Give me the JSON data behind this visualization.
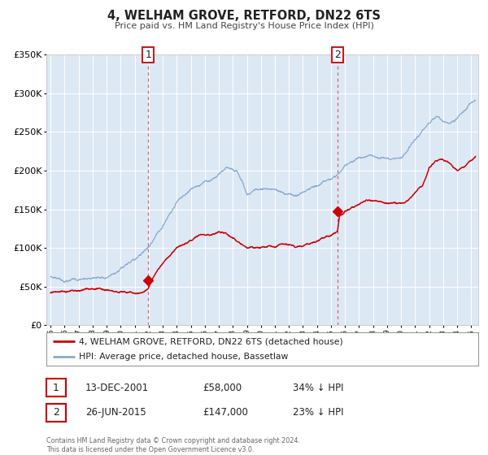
{
  "title": "4, WELHAM GROVE, RETFORD, DN22 6TS",
  "subtitle": "Price paid vs. HM Land Registry's House Price Index (HPI)",
  "legend_label_red": "4, WELHAM GROVE, RETFORD, DN22 6TS (detached house)",
  "legend_label_blue": "HPI: Average price, detached house, Bassetlaw",
  "marker1_date": "13-DEC-2001",
  "marker1_price": 58000,
  "marker1_pct": "34% ↓ HPI",
  "marker2_date": "26-JUN-2015",
  "marker2_price": 147000,
  "marker2_pct": "23% ↓ HPI",
  "footer": "Contains HM Land Registry data © Crown copyright and database right 2024.\nThis data is licensed under the Open Government Licence v3.0.",
  "red_color": "#cc0000",
  "blue_color": "#88aacc",
  "bg_color": "#dde8f5",
  "grid_color": "#ffffff",
  "marker_vline_color": "#cc4444",
  "ylim_min": 0,
  "ylim_max": 350000,
  "xlim_min": 1994.7,
  "xlim_max": 2025.5,
  "yticks": [
    0,
    50000,
    100000,
    150000,
    200000,
    250000,
    300000,
    350000
  ],
  "xticks": [
    1995,
    1996,
    1997,
    1998,
    1999,
    2000,
    2001,
    2002,
    2003,
    2004,
    2005,
    2006,
    2007,
    2008,
    2009,
    2010,
    2011,
    2012,
    2013,
    2014,
    2015,
    2016,
    2017,
    2018,
    2019,
    2020,
    2021,
    2022,
    2023,
    2024,
    2025
  ]
}
